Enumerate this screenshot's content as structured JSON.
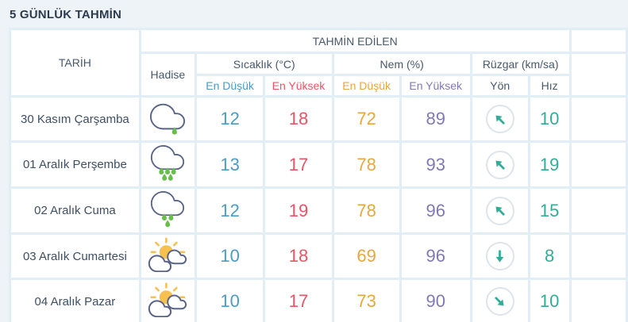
{
  "title": "5 GÜNLÜK TAHMİN",
  "table": {
    "header": {
      "date": "TARİH",
      "predicted_group": "TAHMİN EDİLEN",
      "condition": "Hadise",
      "temperature_group": "Sıcaklık (°C)",
      "humidity_group": "Nem (%)",
      "wind_group": "Rüzgar (km/sa)",
      "temp_min": "En Düşük",
      "temp_max": "En Yüksek",
      "hum_min": "En Düşük",
      "hum_max": "En Yüksek",
      "wind_dir": "Yön",
      "wind_speed": "Hız"
    },
    "rows": [
      {
        "date": "30 Kasım Çarşamba",
        "icon": "cloud-drizzle",
        "temp_min": "12",
        "temp_max": "18",
        "hum_min": "72",
        "hum_max": "89",
        "wind_dir": "NW",
        "wind_speed": "10"
      },
      {
        "date": "01 Aralık Perşembe",
        "icon": "cloud-rain-heavy",
        "temp_min": "13",
        "temp_max": "17",
        "hum_min": "78",
        "hum_max": "93",
        "wind_dir": "NW",
        "wind_speed": "19"
      },
      {
        "date": "02 Aralık Cuma",
        "icon": "cloud-rain",
        "temp_min": "12",
        "temp_max": "19",
        "hum_min": "78",
        "hum_max": "96",
        "wind_dir": "NW",
        "wind_speed": "15"
      },
      {
        "date": "03 Aralık Cumartesi",
        "icon": "sun-clouds",
        "temp_min": "10",
        "temp_max": "18",
        "hum_min": "69",
        "hum_max": "96",
        "wind_dir": "S",
        "wind_speed": "8"
      },
      {
        "date": "04 Aralık Pazar",
        "icon": "sun-clouds",
        "temp_min": "10",
        "temp_max": "17",
        "hum_min": "73",
        "hum_max": "90",
        "wind_dir": "SE",
        "wind_speed": "10"
      }
    ]
  },
  "colors": {
    "accent-blue": "#4a9bc6",
    "accent-red": "#ec5365",
    "accent-orange": "#e9a63b",
    "accent-purple": "#8278b5",
    "accent-teal": "#33ac97",
    "header-text": "#46586b",
    "title-text": "#2c3b4e",
    "page-bg": "#edf3f7",
    "gap-bg": "#e2eef5"
  }
}
